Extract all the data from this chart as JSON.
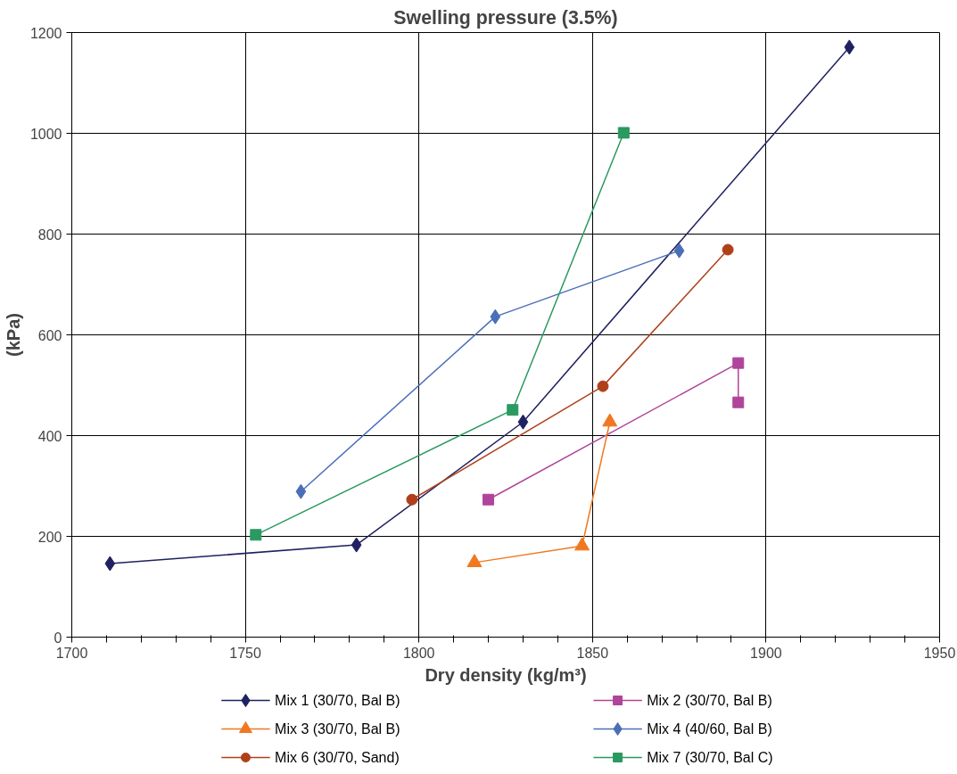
{
  "chart_data": {
    "type": "line",
    "title": "Swelling pressure (3.5%)",
    "xlabel": "Dry density (kg/m³)",
    "ylabel": "(kPa)",
    "xlim": [
      1700,
      1950
    ],
    "ylim": [
      0,
      1200
    ],
    "xticks": [
      1700,
      {
        "value": 1710,
        "label": null
      },
      {
        "value": 1720,
        "label": null
      },
      {
        "value": 1730,
        "label": null
      },
      {
        "value": 1740,
        "label": null
      },
      1750,
      {
        "value": 1760,
        "label": null
      },
      {
        "value": 1770,
        "label": null
      },
      {
        "value": 1780,
        "label": null
      },
      {
        "value": 1790,
        "label": null
      },
      1800,
      {
        "value": 1810,
        "label": null
      },
      {
        "value": 1820,
        "label": null
      },
      {
        "value": 1830,
        "label": null
      },
      {
        "value": 1840,
        "label": null
      },
      1850,
      {
        "value": 1860,
        "label": null
      },
      {
        "value": 1870,
        "label": null
      },
      {
        "value": 1880,
        "label": null
      },
      {
        "value": 1890,
        "label": null
      },
      1900,
      {
        "value": 1910,
        "label": null
      },
      {
        "value": 1920,
        "label": null
      },
      {
        "value": 1930,
        "label": null
      },
      {
        "value": 1940,
        "label": null
      },
      1950
    ],
    "yticks": [
      0,
      200,
      400,
      600,
      800,
      1000,
      1200
    ],
    "grid": true,
    "legend": "bottom",
    "series": [
      {
        "name": "Mix 1 (30/70, Bal B)",
        "color": "#1f2160",
        "marker": "diamond",
        "x": [
          1711,
          1782,
          1830,
          1924
        ],
        "values": [
          146,
          183,
          427,
          1171
        ]
      },
      {
        "name": "Mix 2 (30/70, Bal B)",
        "color": "#b0449a",
        "marker": "square",
        "x": [
          1820,
          1892,
          1892
        ],
        "values": [
          273,
          544,
          466
        ]
      },
      {
        "name": "Mix 3 (30/70, Bal B)",
        "color": "#f07820",
        "marker": "triangle",
        "x": [
          1816,
          1847,
          1855
        ],
        "values": [
          148,
          181,
          427
        ]
      },
      {
        "name": "Mix 4 (40/60, Bal B)",
        "color": "#4a6fb8",
        "marker": "diamond",
        "x": [
          1766,
          1822,
          1875
        ],
        "values": [
          289,
          636,
          767
        ]
      },
      {
        "name": "Mix 6 (30/70, Sand)",
        "color": "#b0401a",
        "marker": "circle",
        "x": [
          1798,
          1853,
          1889
        ],
        "values": [
          273,
          498,
          769
        ]
      },
      {
        "name": "Mix 7 (30/70, Bal C)",
        "color": "#2a9a60",
        "marker": "square",
        "x": [
          1753,
          1827,
          1859
        ],
        "values": [
          203,
          451,
          1001
        ]
      }
    ]
  }
}
